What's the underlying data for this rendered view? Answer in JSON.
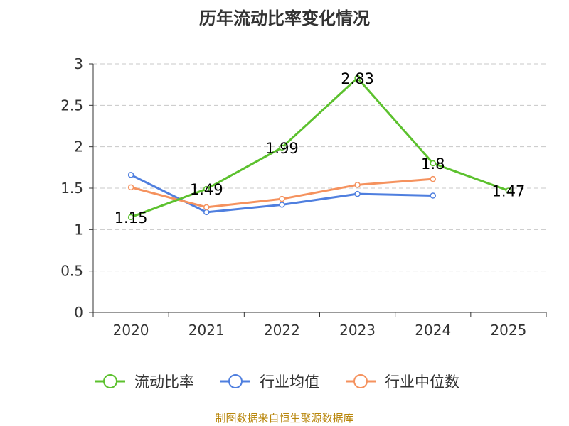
{
  "chart_data": {
    "type": "line",
    "title": "历年流动比率变化情况",
    "categories": [
      "2020",
      "2021",
      "2022",
      "2023",
      "2024",
      "2025"
    ],
    "ylim": [
      0,
      3
    ],
    "yticks": [
      "0",
      "0.5",
      "1",
      "1.5",
      "2",
      "2.5",
      "3"
    ],
    "grid": true,
    "legend_position": "bottom",
    "series": [
      {
        "name": "流动比率",
        "color": "#5cc12e",
        "values": [
          1.15,
          1.49,
          1.99,
          2.83,
          1.8,
          1.47
        ],
        "labels": [
          "1.15",
          "1.49",
          "1.99",
          "2.83",
          "1.8",
          "1.47"
        ]
      },
      {
        "name": "行业均值",
        "color": "#4f7fdf",
        "values": [
          1.66,
          1.21,
          1.3,
          1.43,
          1.41,
          null
        ]
      },
      {
        "name": "行业中位数",
        "color": "#f5925e",
        "values": [
          1.51,
          1.27,
          1.37,
          1.54,
          1.61,
          null
        ]
      }
    ]
  },
  "footer": {
    "source": "制图数据来自恒生聚源数据库"
  }
}
